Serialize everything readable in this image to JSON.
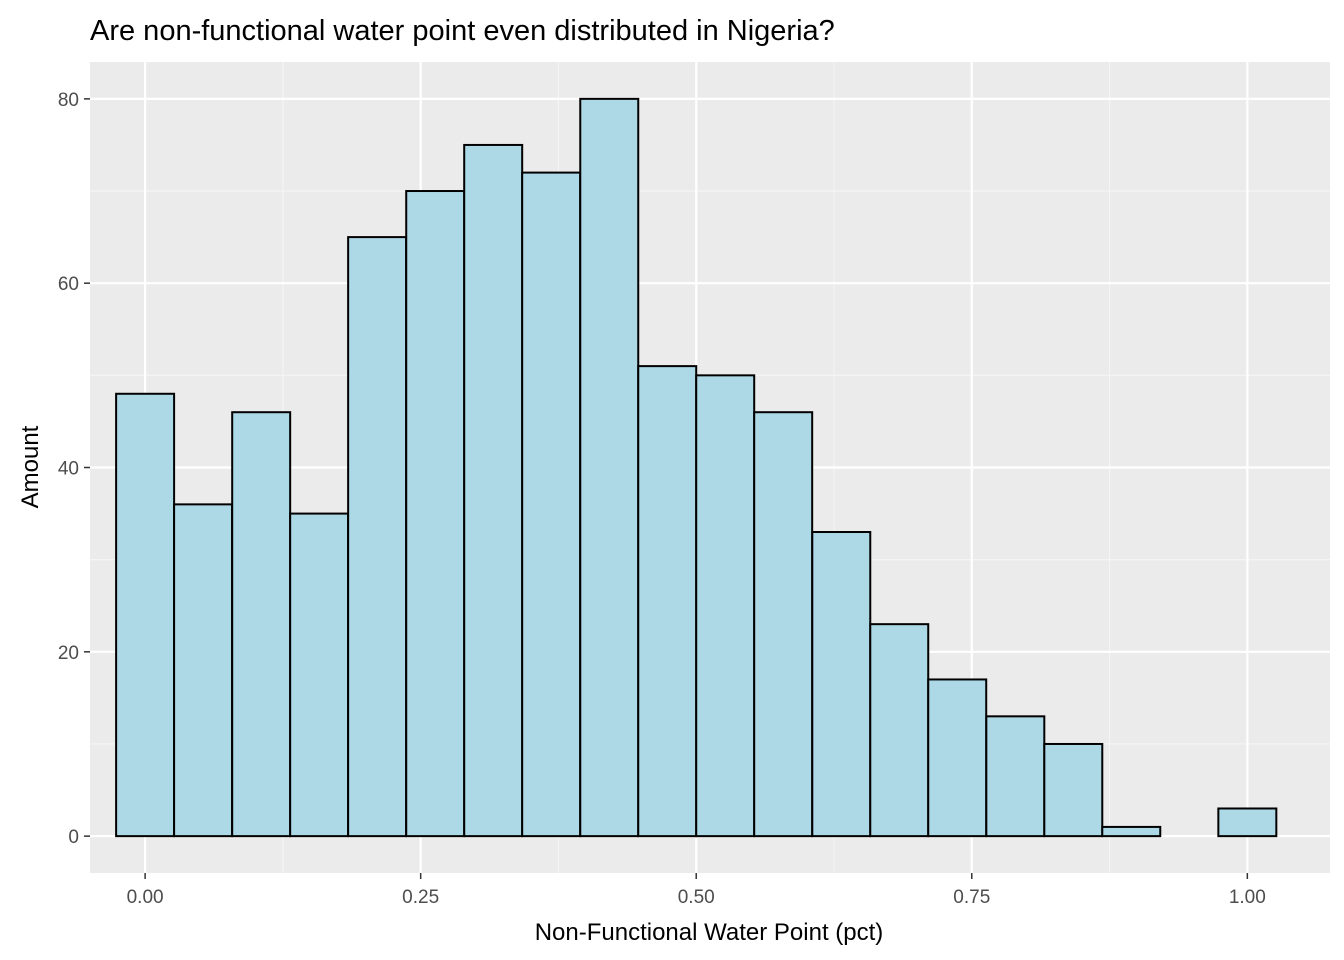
{
  "chart_data": {
    "type": "bar",
    "title": "Are non-functional water point even distributed in Nigeria?",
    "xlabel": "Non-Functional Water Point (pct)",
    "ylabel": "Amount",
    "xlim": [
      -0.05,
      1.075
    ],
    "ylim": [
      -4,
      84
    ],
    "x_ticks": [
      0,
      0.25,
      0.5,
      0.75,
      1.0
    ],
    "x_tick_labels": [
      "0.00",
      "0.25",
      "0.50",
      "0.75",
      "1.00"
    ],
    "y_ticks": [
      0,
      20,
      40,
      60,
      80
    ],
    "y_tick_labels": [
      "0",
      "20",
      "40",
      "60",
      "80"
    ],
    "bin_width": 0.0526,
    "bin_centers": [
      0.0,
      0.0526,
      0.1053,
      0.1579,
      0.2105,
      0.2632,
      0.3158,
      0.3684,
      0.4211,
      0.4737,
      0.5263,
      0.5789,
      0.6316,
      0.6842,
      0.7368,
      0.7895,
      0.8421,
      0.8947,
      0.9474,
      1.0
    ],
    "values": [
      48,
      36,
      46,
      35,
      65,
      70,
      75,
      72,
      80,
      51,
      50,
      46,
      33,
      23,
      17,
      13,
      10,
      1,
      0,
      3
    ],
    "colors": {
      "fill": "#add8e6",
      "stroke": "#000000",
      "panel": "#ebebeb",
      "grid_major": "#ffffff",
      "grid_minor": "#f5f5f5"
    },
    "grid": true,
    "legend": "none"
  }
}
